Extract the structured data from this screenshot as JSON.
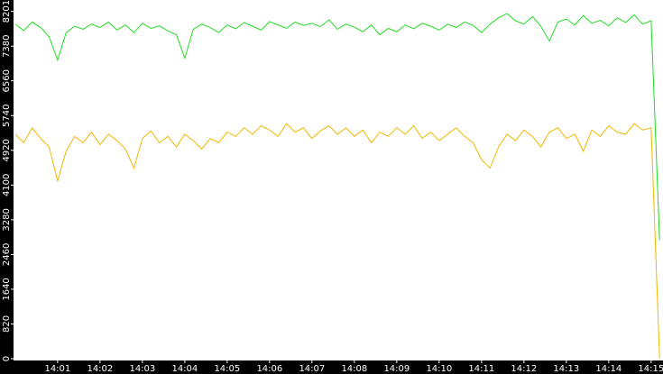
{
  "chart_data": {
    "type": "line",
    "x": [
      0,
      0.2,
      0.4,
      0.6,
      0.8,
      1,
      1.2,
      1.4,
      1.6,
      1.8,
      2,
      2.2,
      2.4,
      2.6,
      2.8,
      3,
      3.2,
      3.4,
      3.6,
      3.8,
      4,
      4.2,
      4.4,
      4.6,
      4.8,
      5,
      5.2,
      5.4,
      5.6,
      5.8,
      6,
      6.2,
      6.4,
      6.6,
      6.8,
      7,
      7.2,
      7.4,
      7.6,
      7.8,
      8,
      8.2,
      8.4,
      8.6,
      8.8,
      9,
      9.2,
      9.4,
      9.6,
      9.8,
      10,
      10.2,
      10.4,
      10.6,
      10.8,
      11,
      11.2,
      11.4,
      11.6,
      11.8,
      12,
      12.2,
      12.4,
      12.6,
      12.8,
      13,
      13.2,
      13.4,
      13.6,
      13.8,
      14,
      14.2,
      14.4,
      14.6,
      14.8,
      15,
      15.2
    ],
    "series": [
      {
        "color": "#22dd22",
        "values": [
          7900,
          7750,
          7950,
          7820,
          7600,
          7050,
          7700,
          7850,
          7780,
          7900,
          7820,
          7950,
          7760,
          7880,
          7700,
          7920,
          7800,
          7860,
          7740,
          7650,
          7100,
          7780,
          7900,
          7820,
          7700,
          7880,
          7790,
          7940,
          7850,
          7760,
          7960,
          7880,
          7800,
          7950,
          7870,
          7920,
          7840,
          8000,
          7780,
          7900,
          7830,
          7720,
          7880,
          7650,
          7800,
          7720,
          7880,
          7790,
          7920,
          7850,
          7760,
          7900,
          7820,
          7950,
          7870,
          7700,
          7900,
          8050,
          8150,
          7980,
          7900,
          8080,
          7850,
          7500,
          7950,
          8020,
          7880,
          8100,
          7920,
          7990,
          7860,
          8050,
          7940,
          8120,
          7900,
          7980,
          2800
        ]
      },
      {
        "color": "#f0b800",
        "values": [
          5300,
          5100,
          5450,
          5200,
          5000,
          4200,
          4900,
          5250,
          5100,
          5350,
          5050,
          5300,
          5150,
          4950,
          4500,
          5200,
          5380,
          5100,
          5250,
          5000,
          5300,
          5150,
          4950,
          5200,
          5100,
          5350,
          5250,
          5450,
          5300,
          5500,
          5400,
          5250,
          5550,
          5350,
          5450,
          5200,
          5380,
          5500,
          5300,
          5450,
          5250,
          5400,
          5100,
          5350,
          5250,
          5450,
          5300,
          5500,
          5200,
          5350,
          5150,
          5300,
          5450,
          5250,
          5100,
          4700,
          4500,
          5000,
          5300,
          5150,
          5400,
          5250,
          5000,
          5350,
          5450,
          5200,
          5300,
          4900,
          5400,
          5250,
          5500,
          5350,
          5300,
          5550,
          5400,
          5450,
          0
        ]
      }
    ],
    "xlim": [
      -0.04,
      15.28
    ],
    "xticks": [
      {
        "value": 1,
        "label": "14:01"
      },
      {
        "value": 2,
        "label": "14:02"
      },
      {
        "value": 3,
        "label": "14:03"
      },
      {
        "value": 4,
        "label": "14:04"
      },
      {
        "value": 5,
        "label": "14:05"
      },
      {
        "value": 6,
        "label": "14:06"
      },
      {
        "value": 7,
        "label": "14:07"
      },
      {
        "value": 8,
        "label": "14:08"
      },
      {
        "value": 9,
        "label": "14:09"
      },
      {
        "value": 10,
        "label": "14:10"
      },
      {
        "value": 11,
        "label": "14:11"
      },
      {
        "value": 12,
        "label": "14:12"
      },
      {
        "value": 13,
        "label": "14:13"
      },
      {
        "value": 14,
        "label": "14:14"
      },
      {
        "value": 15,
        "label": "14:15"
      }
    ],
    "ylim": [
      0,
      8470
    ],
    "yticks": [
      0,
      820,
      1640,
      2460,
      3280,
      4100,
      4920,
      5740,
      6560,
      7380,
      8201
    ]
  }
}
